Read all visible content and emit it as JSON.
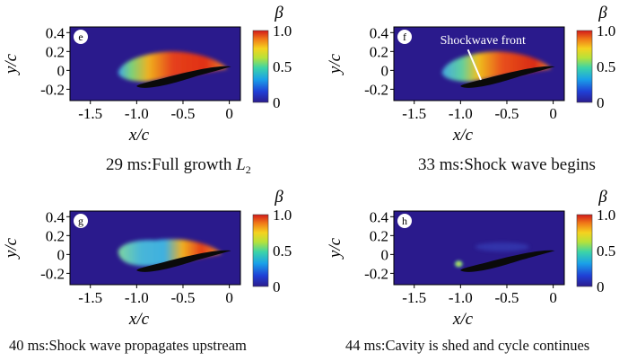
{
  "figure": {
    "colors": {
      "background": "#2a1a8c",
      "airfoil": "#0a0a0a",
      "axis": "#000000",
      "marker_bg": "#ffffff"
    },
    "panels": [
      {
        "label": "e",
        "caption_prefix": "29 ms:Full growth ",
        "caption_var": "L",
        "caption_sub": "2"
      },
      {
        "label": "f",
        "caption_prefix": "33 ms:Shock wave begins",
        "annotation": "Shockwave front"
      },
      {
        "label": "g",
        "caption_prefix": "40 ms:Shock wave propagates upstream"
      },
      {
        "label": "h",
        "caption_prefix": "44 ms:Cavity is shed and cycle continues"
      }
    ]
  },
  "chart_data": [
    {
      "type": "heatmap",
      "panel": "e",
      "title": "29 ms:Full growth L2",
      "xlabel": "x/c",
      "ylabel": "y/c",
      "colorbar_label": "β",
      "x_ticks": [
        "-1.5",
        "-1.0",
        "-0.5",
        "0"
      ],
      "y_ticks": [
        "0.4",
        "0.2",
        "0",
        "-0.2"
      ],
      "colorbar_ticks": [
        "1.0",
        "0.5",
        "0"
      ],
      "xlim": [
        -1.72,
        0.12
      ],
      "ylim": [
        -0.32,
        0.46
      ],
      "clim": [
        0,
        1.0
      ],
      "cavity": {
        "x_start": -1.2,
        "x_end": -0.05,
        "peak_beta": 0.95,
        "peak_x": -0.6,
        "shape": "attached_full"
      }
    },
    {
      "type": "heatmap",
      "panel": "f",
      "title": "33 ms:Shock wave begins",
      "xlabel": "x/c",
      "ylabel": "y/c",
      "colorbar_label": "β",
      "x_ticks": [
        "-1.5",
        "-1.0",
        "-0.5",
        "0"
      ],
      "y_ticks": [
        "0.4",
        "0.2",
        "0",
        "-0.2"
      ],
      "colorbar_ticks": [
        "1.0",
        "0.5",
        "0"
      ],
      "xlim": [
        -1.72,
        0.12
      ],
      "ylim": [
        -0.32,
        0.46
      ],
      "clim": [
        0,
        1.0
      ],
      "annotations": [
        "Shockwave front"
      ],
      "cavity": {
        "x_start": -1.2,
        "x_end": -0.05,
        "peak_beta": 1.0,
        "peak_x": -0.5,
        "shape": "attached_full_with_front"
      }
    },
    {
      "type": "heatmap",
      "panel": "g",
      "title": "40 ms:Shock wave propagates upstream",
      "xlabel": "x/c",
      "ylabel": "y/c",
      "colorbar_label": "β",
      "x_ticks": [
        "-1.5",
        "-1.0",
        "-0.5",
        "0"
      ],
      "y_ticks": [
        "0.4",
        "0.2",
        "0",
        "-0.2"
      ],
      "colorbar_ticks": [
        "1.0",
        "0.5",
        "0"
      ],
      "xlim": [
        -1.72,
        0.12
      ],
      "ylim": [
        -0.32,
        0.46
      ],
      "clim": [
        0,
        1.0
      ],
      "cavity": {
        "x_start": -1.2,
        "x_end": -0.15,
        "peak_beta": 0.95,
        "peak_x": -0.4,
        "shape": "partial"
      }
    },
    {
      "type": "heatmap",
      "panel": "h",
      "title": "44 ms:Cavity is shed and cycle continues",
      "xlabel": "x/c",
      "ylabel": "y/c",
      "colorbar_label": "β",
      "x_ticks": [
        "-1.5",
        "-1.0",
        "-0.5",
        "0"
      ],
      "y_ticks": [
        "0.4",
        "0.2",
        "0",
        "-0.2"
      ],
      "colorbar_ticks": [
        "1.0",
        "0.5",
        "0"
      ],
      "xlim": [
        -1.72,
        0.12
      ],
      "ylim": [
        -0.32,
        0.46
      ],
      "clim": [
        0,
        1.0
      ],
      "cavity": {
        "x_start": -1.05,
        "x_end": -0.95,
        "peak_beta": 0.75,
        "peak_x": -1.0,
        "shape": "shed"
      }
    }
  ]
}
